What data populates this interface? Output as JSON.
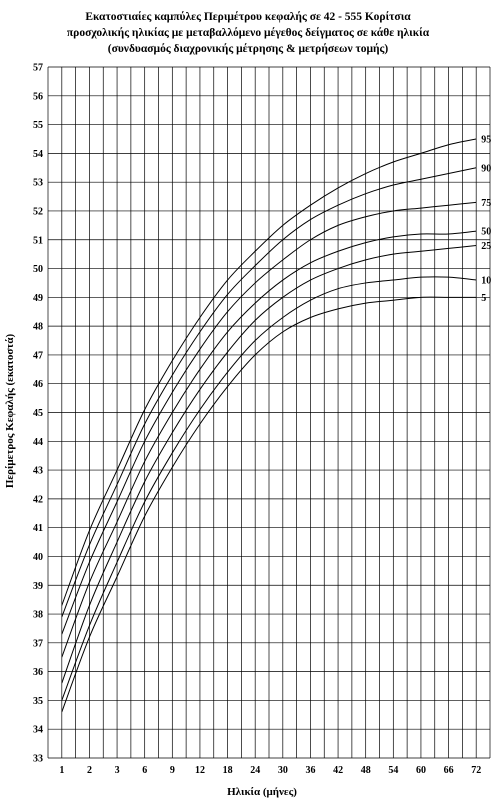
{
  "chart_data": {
    "type": "line",
    "title": {
      "line1_prefix": "Εκατοστιαίες καμπύλες ",
      "line1_highlight": "Περιμέτρου κεφαλής",
      "line1_suffix": " σε 42 - 555 Κορίτσια",
      "line2": "προσχολικής ηλικίας με μεταβαλλόμενο μέγεθος δείγματος σε κάθε ηλικία",
      "line3": "(συνδυασμός διαχρονικής μέτρησης & μετρήσεων τομής)"
    },
    "highlight_color": "#ff0000",
    "xlabel": "Ηλικία (μήνες)",
    "ylabel": "Περίμετρος Κεφαλής (εκατοστά)",
    "categories": [
      "1",
      "2",
      "3",
      "6",
      "9",
      "12",
      "18",
      "24",
      "30",
      "36",
      "42",
      "48",
      "54",
      "60",
      "66",
      "72"
    ],
    "ylim": [
      33,
      57
    ],
    "yticks": [
      33,
      34,
      35,
      36,
      37,
      38,
      39,
      40,
      41,
      42,
      43,
      44,
      45,
      46,
      47,
      48,
      49,
      50,
      51,
      52,
      53,
      54,
      55,
      56,
      57
    ],
    "grid": true,
    "series": [
      {
        "name": "95",
        "values": [
          38.3,
          40.9,
          43.0,
          45.1,
          46.8,
          48.3,
          49.6,
          50.6,
          51.5,
          52.2,
          52.8,
          53.3,
          53.7,
          54.0,
          54.3,
          54.5
        ]
      },
      {
        "name": "90",
        "values": [
          37.9,
          40.4,
          42.5,
          44.6,
          46.3,
          47.8,
          49.1,
          50.1,
          51.0,
          51.7,
          52.2,
          52.6,
          52.9,
          53.1,
          53.3,
          53.5
        ]
      },
      {
        "name": "75",
        "values": [
          37.3,
          39.8,
          41.9,
          44.0,
          45.7,
          47.2,
          48.5,
          49.5,
          50.3,
          51.0,
          51.5,
          51.8,
          52.0,
          52.1,
          52.2,
          52.3
        ]
      },
      {
        "name": "50",
        "values": [
          36.5,
          39.1,
          41.2,
          43.3,
          45.0,
          46.5,
          47.8,
          48.8,
          49.6,
          50.2,
          50.6,
          50.9,
          51.1,
          51.2,
          51.2,
          51.3
        ]
      },
      {
        "name": "25",
        "values": [
          35.6,
          38.3,
          40.5,
          42.6,
          44.3,
          45.8,
          47.1,
          48.2,
          49.0,
          49.6,
          50.0,
          50.3,
          50.5,
          50.6,
          50.7,
          50.8
        ]
      },
      {
        "name": "10",
        "values": [
          35.0,
          37.6,
          39.8,
          41.9,
          43.6,
          45.1,
          46.4,
          47.5,
          48.3,
          48.9,
          49.3,
          49.5,
          49.6,
          49.7,
          49.7,
          49.6
        ]
      },
      {
        "name": "5",
        "values": [
          34.6,
          37.2,
          39.3,
          41.4,
          43.1,
          44.6,
          45.9,
          47.0,
          47.8,
          48.3,
          48.6,
          48.8,
          48.9,
          49.0,
          49.0,
          49.0
        ]
      }
    ]
  }
}
